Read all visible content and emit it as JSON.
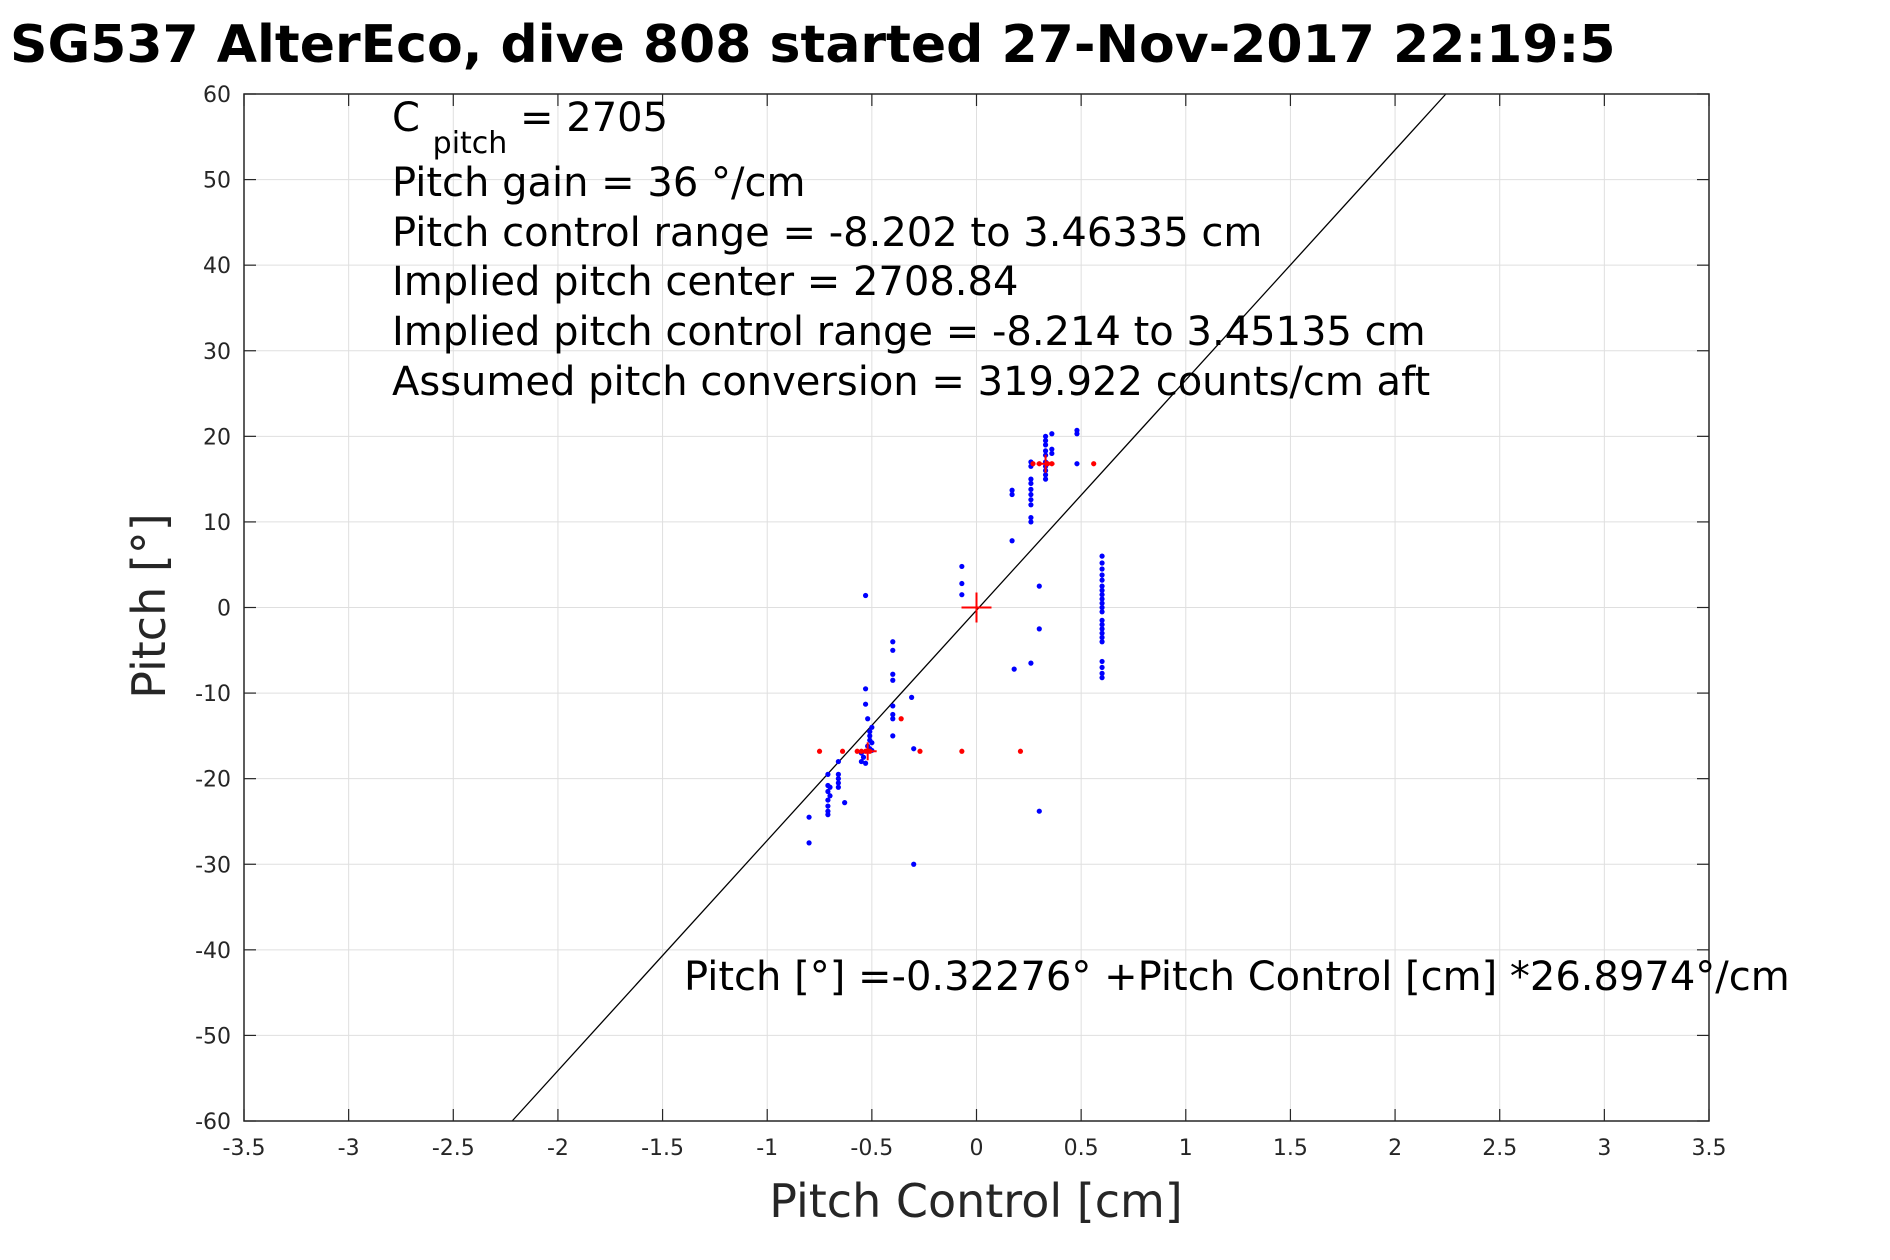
{
  "chart_data": {
    "type": "scatter",
    "title": "SG537 AlterEco, dive 808 started 27-Nov-2017 22:19:5",
    "xlabel": "Pitch Control [cm]",
    "ylabel": "Pitch [°]",
    "xlim": [
      -3.5,
      3.5
    ],
    "ylim": [
      -60,
      60
    ],
    "xticks": [
      -3.5,
      -3,
      -2.5,
      -2,
      -1.5,
      -1,
      -0.5,
      0,
      0.5,
      1,
      1.5,
      2,
      2.5,
      3,
      3.5
    ],
    "yticks": [
      -60,
      -50,
      -40,
      -30,
      -20,
      -10,
      0,
      10,
      20,
      30,
      40,
      50,
      60
    ],
    "xtick_labels": [
      "-3.5",
      "-3",
      "-2.5",
      "-2",
      "-1.5",
      "-1",
      "-0.5",
      "0",
      "0.5",
      "1",
      "1.5",
      "2",
      "2.5",
      "3",
      "3.5"
    ],
    "ytick_labels": [
      "-60",
      "-50",
      "-40",
      "-30",
      "-20",
      "-10",
      "0",
      "10",
      "20",
      "30",
      "40",
      "50",
      "60"
    ],
    "grid": true,
    "annotations": {
      "c_pitch_label": "C",
      "c_pitch_sub": "pitch",
      "c_pitch_value": " = 2705",
      "lines": [
        "Pitch gain = 36 °/cm",
        "Pitch control range = -8.202 to 3.46335 cm",
        "Implied pitch center = 2708.84",
        "Implied pitch control range = -8.214 to 3.45135 cm",
        "Assumed pitch conversion = 319.922 counts/cm aft"
      ],
      "fit_equation": "Pitch [°] =-0.32276° +Pitch Control [cm] *26.8974°/cm"
    },
    "fit_line": {
      "intercept": -0.32276,
      "slope": 26.8974,
      "color": "#000000"
    },
    "center_marker": {
      "x": 0,
      "y": 0,
      "color": "#ff0000"
    },
    "series": [
      {
        "color": "#0000ff",
        "points": [
          [
            -0.8,
            -24.5
          ],
          [
            -0.8,
            -27.5
          ],
          [
            -0.71,
            -19.5
          ],
          [
            -0.71,
            -20.8
          ],
          [
            -0.71,
            -21.5
          ],
          [
            -0.71,
            -22.5
          ],
          [
            -0.71,
            -23.2
          ],
          [
            -0.71,
            -24.2
          ],
          [
            -0.71,
            -23.8
          ],
          [
            -0.7,
            -21.0
          ],
          [
            -0.7,
            -22.0
          ],
          [
            -0.66,
            -18.0
          ],
          [
            -0.66,
            -19.5
          ],
          [
            -0.66,
            -20.5
          ],
          [
            -0.66,
            -21.0
          ],
          [
            -0.66,
            -20.0
          ],
          [
            -0.63,
            -22.8
          ],
          [
            -0.55,
            -17.0
          ],
          [
            -0.55,
            -18.0
          ],
          [
            -0.54,
            -17.5
          ],
          [
            -0.53,
            -18.2
          ],
          [
            -0.53,
            1.4
          ],
          [
            -0.53,
            -9.5
          ],
          [
            -0.53,
            -11.3
          ],
          [
            -0.52,
            -13.0
          ],
          [
            -0.52,
            -16.2
          ],
          [
            -0.51,
            -15.5
          ],
          [
            -0.51,
            -15.0
          ],
          [
            -0.51,
            -14.5
          ],
          [
            -0.51,
            -16.5
          ],
          [
            -0.5,
            -14.0
          ],
          [
            -0.5,
            -15.8
          ],
          [
            -0.5,
            -16.7
          ],
          [
            -0.4,
            -4.0
          ],
          [
            -0.4,
            -5.0
          ],
          [
            -0.4,
            -7.8
          ],
          [
            -0.4,
            -8.5
          ],
          [
            -0.4,
            -11.5
          ],
          [
            -0.4,
            -12.5
          ],
          [
            -0.4,
            -13.0
          ],
          [
            -0.4,
            -15.0
          ],
          [
            -0.31,
            -10.5
          ],
          [
            -0.3,
            -16.5
          ],
          [
            -0.3,
            -30.0
          ],
          [
            -0.07,
            4.8
          ],
          [
            -0.07,
            2.8
          ],
          [
            -0.07,
            1.5
          ],
          [
            0.17,
            13.2
          ],
          [
            0.17,
            13.7
          ],
          [
            0.17,
            7.8
          ],
          [
            0.18,
            -7.2
          ],
          [
            0.26,
            17.0
          ],
          [
            0.26,
            16.5
          ],
          [
            0.26,
            15.0
          ],
          [
            0.26,
            14.5
          ],
          [
            0.26,
            13.8
          ],
          [
            0.26,
            13.2
          ],
          [
            0.26,
            12.6
          ],
          [
            0.26,
            12.0
          ],
          [
            0.26,
            10.5
          ],
          [
            0.26,
            10.0
          ],
          [
            0.26,
            -6.5
          ],
          [
            0.3,
            2.5
          ],
          [
            0.3,
            -2.5
          ],
          [
            0.3,
            -23.8
          ],
          [
            0.33,
            20.0
          ],
          [
            0.33,
            19.5
          ],
          [
            0.33,
            19.0
          ],
          [
            0.33,
            18.3
          ],
          [
            0.33,
            17.8
          ],
          [
            0.33,
            17.0
          ],
          [
            0.33,
            16.5
          ],
          [
            0.33,
            16.0
          ],
          [
            0.33,
            15.5
          ],
          [
            0.33,
            15.0
          ],
          [
            0.36,
            20.3
          ],
          [
            0.36,
            18.5
          ],
          [
            0.36,
            18.0
          ],
          [
            0.48,
            20.3
          ],
          [
            0.48,
            20.7
          ],
          [
            0.48,
            16.8
          ],
          [
            0.6,
            6.0
          ],
          [
            0.6,
            5.2
          ],
          [
            0.6,
            4.5
          ],
          [
            0.6,
            3.8
          ],
          [
            0.6,
            3.2
          ],
          [
            0.6,
            2.5
          ],
          [
            0.6,
            2.0
          ],
          [
            0.6,
            1.5
          ],
          [
            0.6,
            1.0
          ],
          [
            0.6,
            0.5
          ],
          [
            0.6,
            0.0
          ],
          [
            0.6,
            -0.5
          ],
          [
            0.6,
            -1.5
          ],
          [
            0.6,
            -2.0
          ],
          [
            0.6,
            -2.5
          ],
          [
            0.6,
            -3.0
          ],
          [
            0.6,
            -3.5
          ],
          [
            0.6,
            -4.0
          ],
          [
            0.6,
            -6.3
          ],
          [
            0.6,
            -7.0
          ],
          [
            0.6,
            -7.7
          ],
          [
            0.6,
            -8.2
          ]
        ]
      },
      {
        "color": "#ff0000",
        "points": [
          [
            -0.75,
            -16.8
          ],
          [
            -0.64,
            -16.8
          ],
          [
            -0.57,
            -16.8
          ],
          [
            -0.55,
            -16.8
          ],
          [
            -0.53,
            -16.8
          ],
          [
            -0.51,
            -16.8
          ],
          [
            -0.36,
            -13.0
          ],
          [
            -0.27,
            -16.8
          ],
          [
            -0.07,
            -16.8
          ],
          [
            0.21,
            -16.8
          ],
          [
            0.27,
            16.8
          ],
          [
            0.3,
            16.8
          ],
          [
            0.34,
            16.8
          ],
          [
            0.36,
            16.8
          ],
          [
            0.56,
            16.8
          ]
        ]
      }
    ],
    "cluster_markers": [
      {
        "x": -0.52,
        "y": -16.8,
        "color": "#ff0000"
      },
      {
        "x": 0.33,
        "y": 16.8,
        "color": "#ff0000"
      }
    ]
  }
}
